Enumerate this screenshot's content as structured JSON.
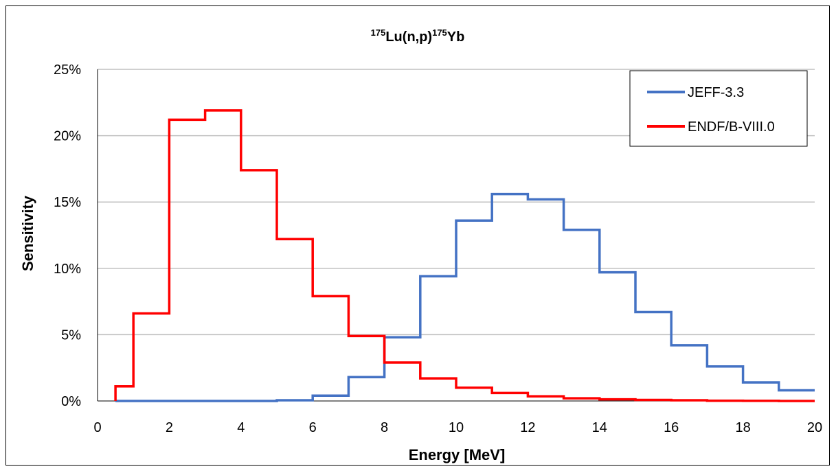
{
  "chart_data": {
    "type": "line",
    "title": {
      "mass_number": "175",
      "reaction": "Lu(n,p)",
      "product_mass_number": "175",
      "product": "Yb"
    },
    "xlabel": "Energy [MeV]",
    "ylabel": "Sensitivity",
    "xlim": [
      0,
      20
    ],
    "ylim": [
      0,
      25
    ],
    "x_ticks": [
      0,
      2,
      4,
      6,
      8,
      10,
      12,
      14,
      16,
      18,
      20
    ],
    "y_ticks": [
      0,
      5,
      10,
      15,
      20,
      25
    ],
    "y_tick_labels": [
      "0%",
      "5%",
      "10%",
      "15%",
      "20%",
      "25%"
    ],
    "grid": "horizontal",
    "legend_position": "top-right",
    "series": [
      {
        "name": "JEFF-3.3",
        "color": "#4472C4",
        "step": true,
        "edges": [
          0.5,
          1,
          2,
          3,
          4,
          5,
          6,
          7,
          8,
          9,
          10,
          11,
          12,
          13,
          14,
          15,
          16,
          17,
          18,
          19,
          20
        ],
        "values": [
          0,
          0,
          0,
          0,
          0,
          0.05,
          0.4,
          1.8,
          4.8,
          9.4,
          13.6,
          15.6,
          15.2,
          12.9,
          9.7,
          6.7,
          4.2,
          2.6,
          1.4,
          0.8
        ]
      },
      {
        "name": "ENDF/B-VIII.0",
        "color": "#FF0000",
        "step": true,
        "edges": [
          0.5,
          1,
          2,
          3,
          4,
          5,
          6,
          7,
          8,
          9,
          10,
          11,
          12,
          13,
          14,
          15,
          16,
          17,
          18,
          19,
          20
        ],
        "values": [
          1.1,
          6.6,
          21.2,
          21.9,
          17.4,
          12.2,
          7.9,
          4.9,
          2.9,
          1.7,
          1.0,
          0.6,
          0.35,
          0.2,
          0.12,
          0.08,
          0.05,
          0.02,
          0.01,
          0.0
        ]
      }
    ]
  }
}
